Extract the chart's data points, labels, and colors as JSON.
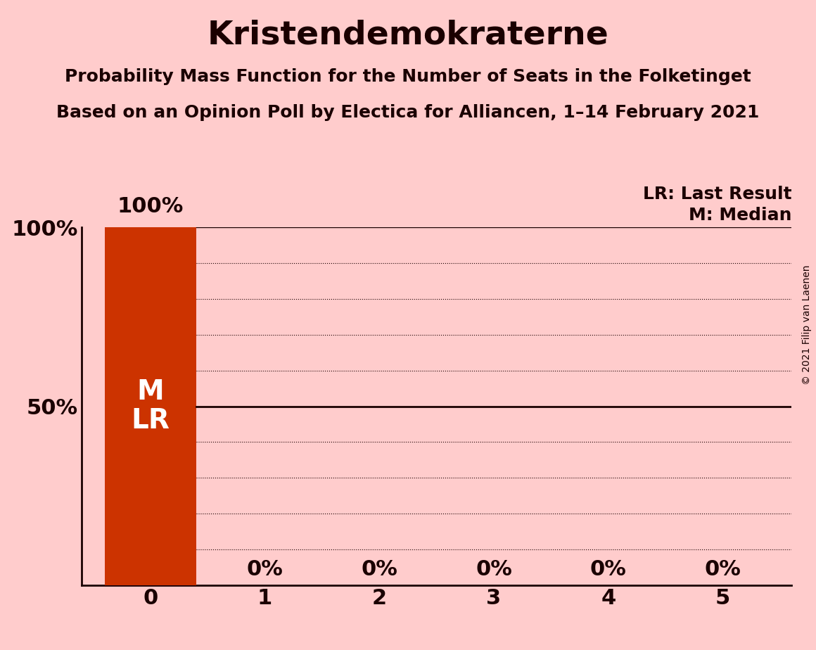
{
  "title": "Kristendemokraterne",
  "subtitle1": "Probability Mass Function for the Number of Seats in the Folketinget",
  "subtitle2": "Based on an Opinion Poll by Electica for Alliancen, 1–14 February 2021",
  "copyright": "© 2021 Filip van Laenen",
  "seats": [
    0,
    1,
    2,
    3,
    4,
    5
  ],
  "probabilities": [
    1.0,
    0.0,
    0.0,
    0.0,
    0.0,
    0.0
  ],
  "bar_color": "#CC3300",
  "background_color": "#FFCCCC",
  "text_color": "#1A0000",
  "bar_label_color": "#FFFFFF",
  "median_seat": 0,
  "last_result_seat": 0,
  "legend_lr": "LR: Last Result",
  "legend_m": "M: Median",
  "title_fontsize": 34,
  "subtitle_fontsize": 18,
  "tick_fontsize": 22,
  "bar_label_fontsize": 22,
  "legend_fontsize": 18,
  "copyright_fontsize": 10,
  "ml_fontsize": 28
}
